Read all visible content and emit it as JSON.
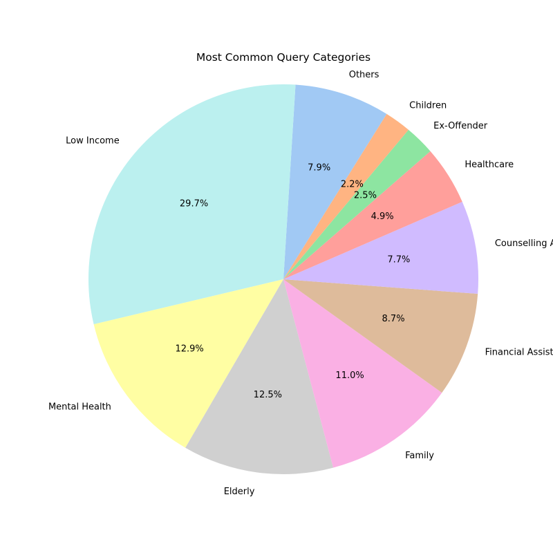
{
  "chart_data": {
    "type": "pie",
    "title": "Most Common Query Categories",
    "start_angle_deg": 58,
    "direction": "counterclockwise",
    "slices": [
      {
        "label": "Others",
        "pct_label": "7.9%",
        "value": 7.9,
        "color": "#a1c9f4"
      },
      {
        "label": "Low Income",
        "pct_label": "29.7%",
        "value": 29.7,
        "color": "#bbf0ef"
      },
      {
        "label": "Mental Health",
        "pct_label": "12.9%",
        "value": 12.9,
        "color": "#fffea3"
      },
      {
        "label": "Elderly",
        "pct_label": "12.5%",
        "value": 12.5,
        "color": "#d0d0d0"
      },
      {
        "label": "Family",
        "pct_label": "11.0%",
        "value": 11.0,
        "color": "#fab0e4"
      },
      {
        "label": "Financial Assistance",
        "pct_label": "8.7%",
        "value": 8.7,
        "color": "#debb9b"
      },
      {
        "label": "Counselling A",
        "pct_label": "7.7%",
        "value": 7.7,
        "color": "#d0bbff"
      },
      {
        "label": "Healthcare",
        "pct_label": "4.9%",
        "value": 4.9,
        "color": "#ff9f9b"
      },
      {
        "label": "Ex-Offender",
        "pct_label": "2.5%",
        "value": 2.5,
        "color": "#8de5a1"
      },
      {
        "label": "Children",
        "pct_label": "2.2%",
        "value": 2.2,
        "color": "#ffb482"
      }
    ]
  }
}
